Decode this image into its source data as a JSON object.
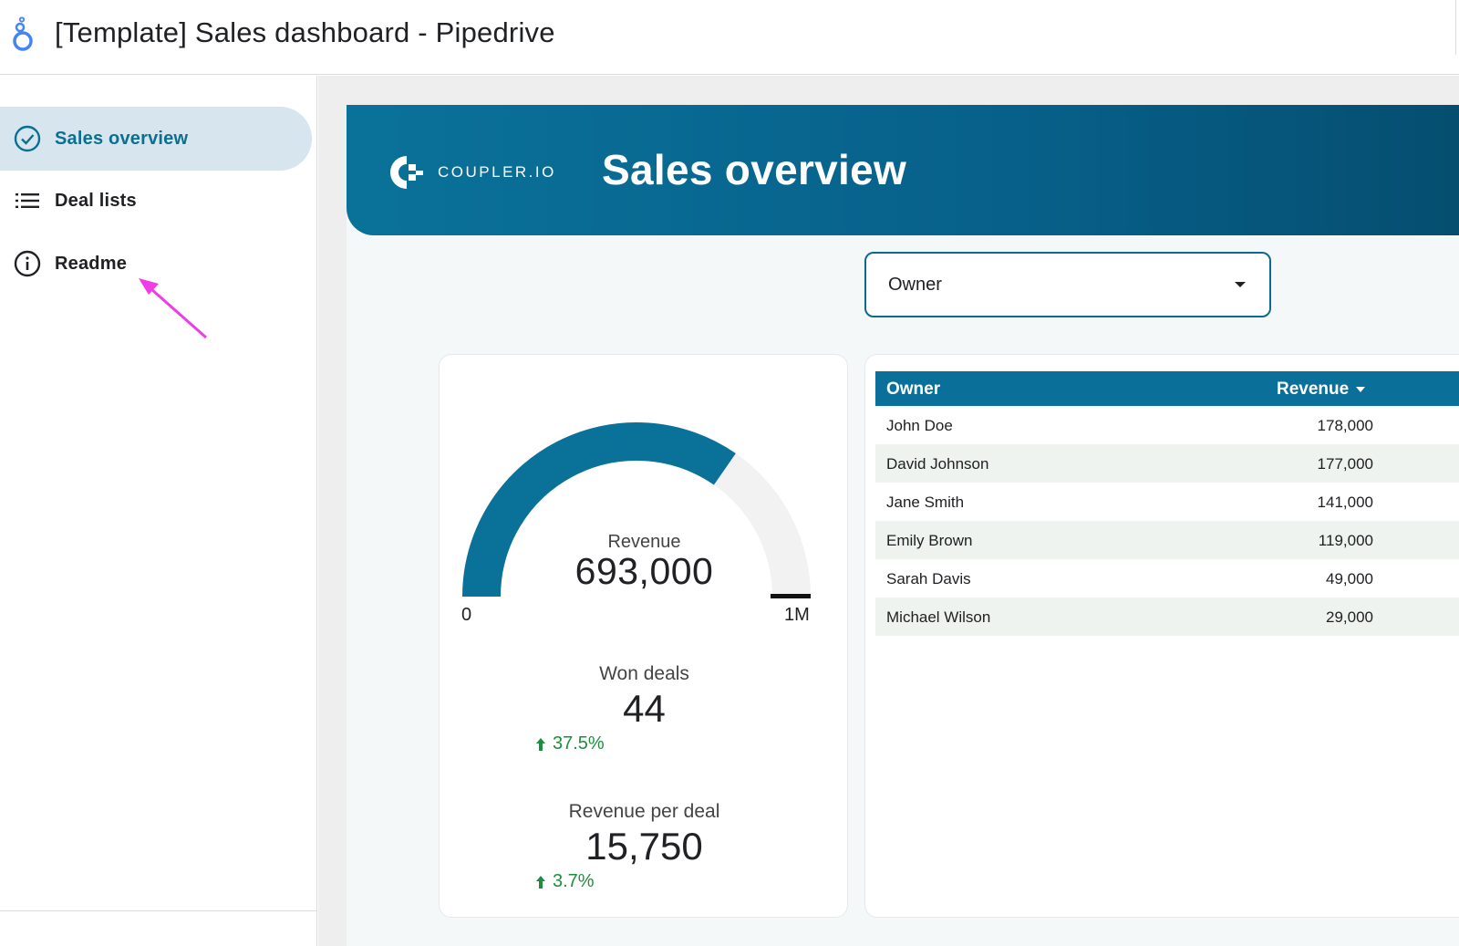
{
  "header": {
    "title": "[Template] Sales dashboard - Pipedrive"
  },
  "sidebar": {
    "items": [
      {
        "label": "Sales overview",
        "icon": "check-circle-icon",
        "active": true
      },
      {
        "label": "Deal lists",
        "icon": "list-icon",
        "active": false
      },
      {
        "label": "Readme",
        "icon": "info-icon",
        "active": false
      }
    ]
  },
  "banner": {
    "brand": "COUPLER.IO",
    "title": "Sales overview"
  },
  "filter": {
    "label": "Owner"
  },
  "kpis": {
    "gauge": {
      "label": "Revenue",
      "value": "693,000",
      "min": "0",
      "max": "1M",
      "fraction": 0.693
    },
    "won_deals": {
      "title": "Won deals",
      "value": "44",
      "delta": "37.5%"
    },
    "revenue_per_deal": {
      "title": "Revenue per deal",
      "value": "15,750",
      "delta": "3.7%"
    }
  },
  "table": {
    "columns": [
      "Owner",
      "Revenue"
    ],
    "rows": [
      {
        "owner": "John Doe",
        "revenue": "178,000"
      },
      {
        "owner": "David Johnson",
        "revenue": "177,000"
      },
      {
        "owner": "Jane Smith",
        "revenue": "141,000"
      },
      {
        "owner": "Emily Brown",
        "revenue": "119,000"
      },
      {
        "owner": "Sarah Davis",
        "revenue": "49,000"
      },
      {
        "owner": "Michael Wilson",
        "revenue": "29,000"
      }
    ]
  },
  "colors": {
    "accent": "#0a6f99",
    "positive": "#1e8e3e",
    "annotation_arrow": "#f03ce6",
    "row_alt": "#eef3ef"
  }
}
